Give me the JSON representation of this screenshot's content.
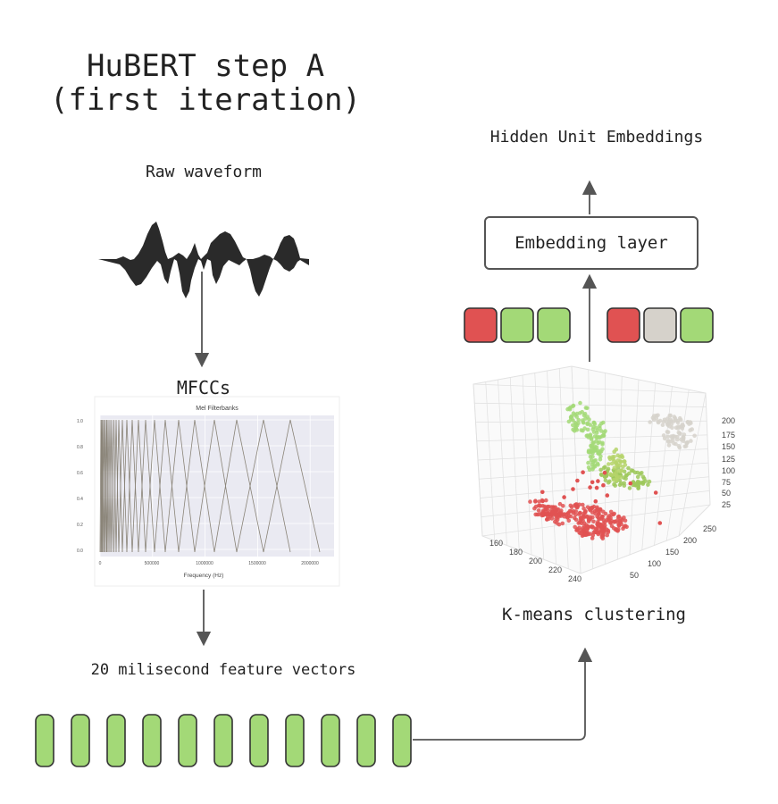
{
  "title": {
    "line1": "HuBERT step A",
    "line2": "(first iteration)"
  },
  "labels": {
    "raw_waveform": "Raw waveform",
    "mfccs": "MFCCs",
    "feature_vectors": "20 milisecond feature vectors",
    "kmeans": "K-means clustering",
    "hidden_units": "Hidden Unit Embeddings",
    "embedding_layer": "Embedding layer"
  },
  "mfcc_plot": {
    "title": "Mel Filterbanks",
    "xlabel": "Frequency (Hz)",
    "xticks": [
      "0",
      "500000",
      "1000000",
      "1500000",
      "2000000"
    ],
    "yticks": [
      "1.0",
      "0.8",
      "0.6",
      "0.4",
      "0.2",
      "0.0"
    ]
  },
  "cluster_plot": {
    "z_ticks": [
      "200",
      "175",
      "150",
      "125",
      "100",
      "75",
      "50",
      "25"
    ],
    "x_ticks": [
      "160",
      "180",
      "200",
      "220",
      "240"
    ],
    "y_ticks": [
      "250",
      "200",
      "150",
      "100",
      "50"
    ]
  },
  "colors": {
    "green": "#a3d977",
    "red": "#e05252",
    "gray": "#d6d2cb",
    "arrow": "#555555"
  },
  "feature_vector_count": 11,
  "unit_tokens_left": [
    "red",
    "green",
    "green"
  ],
  "unit_tokens_right": [
    "red",
    "gray",
    "green"
  ]
}
